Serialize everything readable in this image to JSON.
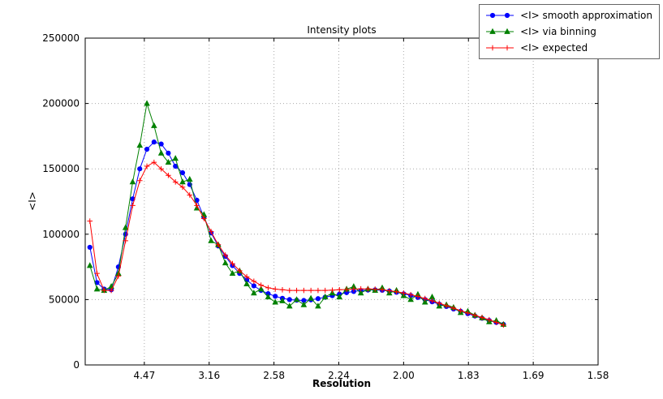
{
  "chart_data": {
    "type": "line",
    "title": "Intensity plots",
    "xlabel": "Resolution",
    "ylabel": "<I>",
    "grid": true,
    "legend_position": "upper right",
    "xlim": [
      0.0044,
      0.4
    ],
    "ylim": [
      0,
      250000
    ],
    "xticks": {
      "values": [
        0.05,
        0.1,
        0.15,
        0.2,
        0.25,
        0.3,
        0.35,
        0.4
      ],
      "labels": [
        "4.47",
        "3.16",
        "2.58",
        "2.24",
        "2.00",
        "1.83",
        "1.69",
        "1.58"
      ]
    },
    "yticks": {
      "values": [
        0,
        50000,
        100000,
        150000,
        200000,
        250000
      ],
      "labels": [
        "0",
        "50000",
        "100000",
        "150000",
        "200000",
        "250000"
      ]
    },
    "x": [
      0.008,
      0.0135,
      0.019,
      0.0245,
      0.03,
      0.0355,
      0.041,
      0.0465,
      0.052,
      0.0575,
      0.063,
      0.0685,
      0.074,
      0.0795,
      0.085,
      0.0905,
      0.096,
      0.1015,
      0.107,
      0.1125,
      0.118,
      0.1235,
      0.129,
      0.1345,
      0.14,
      0.1455,
      0.151,
      0.1565,
      0.162,
      0.1675,
      0.173,
      0.1785,
      0.184,
      0.1895,
      0.195,
      0.2005,
      0.206,
      0.2115,
      0.217,
      0.2225,
      0.228,
      0.2335,
      0.239,
      0.2445,
      0.25,
      0.2555,
      0.261,
      0.2665,
      0.272,
      0.2775,
      0.283,
      0.2885,
      0.294,
      0.2995,
      0.305,
      0.3105,
      0.316,
      0.3215,
      0.327
    ],
    "series": [
      {
        "name": "<I> smooth approximation",
        "color": "#0000ff",
        "marker": "circle",
        "values": [
          90000,
          63000,
          58000,
          57500,
          75000,
          100000,
          127000,
          150000,
          165000,
          170500,
          169000,
          162000,
          152000,
          147000,
          138000,
          126000,
          113000,
          101000,
          91000,
          83000,
          76000,
          70000,
          65000,
          60500,
          57000,
          54500,
          52500,
          51000,
          50000,
          49500,
          49300,
          49800,
          50700,
          51800,
          53000,
          54200,
          55300,
          56200,
          56900,
          57300,
          57400,
          57100,
          56500,
          55600,
          54400,
          53100,
          51600,
          50000,
          48300,
          46500,
          44700,
          42800,
          41000,
          39200,
          37400,
          35700,
          34000,
          32500,
          31000
        ]
      },
      {
        "name": "<I> via binning",
        "color": "#008000",
        "marker": "triangle",
        "values": [
          76000,
          58000,
          57000,
          60000,
          70000,
          105000,
          140000,
          168000,
          200000,
          183000,
          162000,
          155000,
          158000,
          140000,
          142000,
          120000,
          115000,
          95000,
          92000,
          78000,
          70000,
          72000,
          62000,
          55000,
          58000,
          52000,
          48000,
          49000,
          45000,
          50000,
          46000,
          51000,
          45000,
          52000,
          55000,
          52000,
          58000,
          60000,
          55000,
          58000,
          57000,
          59000,
          55000,
          57000,
          53000,
          50000,
          54000,
          48000,
          52000,
          45000,
          46000,
          44000,
          40000,
          41000,
          38000,
          36000,
          33000,
          34000,
          31000
        ]
      },
      {
        "name": "<I> expected",
        "color": "#ff0000",
        "marker": "plus",
        "values": [
          110000,
          70000,
          57000,
          57000,
          68000,
          95000,
          122000,
          141000,
          152000,
          155000,
          150000,
          145000,
          140000,
          136000,
          130000,
          122000,
          112000,
          102000,
          92000,
          84000,
          77500,
          72000,
          67500,
          64000,
          61000,
          59000,
          58000,
          57500,
          57000,
          57000,
          57000,
          57000,
          57000,
          57000,
          57200,
          57500,
          57700,
          58000,
          58200,
          58200,
          58000,
          57500,
          56800,
          56000,
          55000,
          53800,
          52400,
          50800,
          49000,
          47200,
          45300,
          43400,
          41500,
          39700,
          38000,
          36300,
          34600,
          32500,
          30500
        ]
      }
    ]
  }
}
